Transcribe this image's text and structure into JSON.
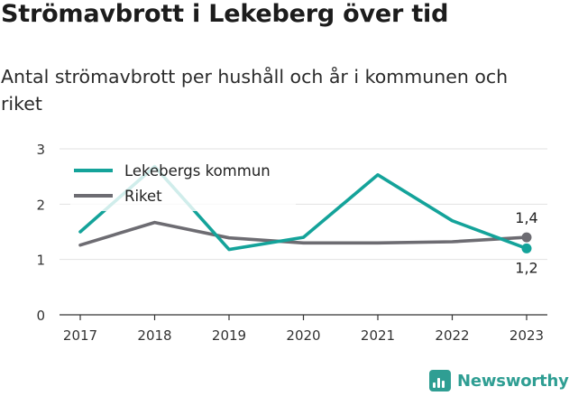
{
  "title": "Strömavbrott i Lekeberg över tid",
  "subtitle": "Antal strömavbrott per hushåll och år i kommunen och riket",
  "brand": {
    "name": "Newsworthy",
    "icon": "bar-chart-logo-icon",
    "color": "#2f9e93"
  },
  "chart_data": {
    "type": "line",
    "title": "",
    "xlabel": "",
    "ylabel": "",
    "x": [
      "2017",
      "2018",
      "2019",
      "2020",
      "2021",
      "2022",
      "2023"
    ],
    "ylim": [
      0,
      3
    ],
    "yticks": [
      "0",
      "1",
      "2",
      "3"
    ],
    "grid": true,
    "legend_position": "top-left",
    "series": [
      {
        "name": "Lekebergs kommun",
        "color": "#14a39a",
        "values": [
          1.5,
          2.68,
          1.18,
          1.4,
          2.53,
          1.7,
          1.2
        ],
        "end_label": "1,2"
      },
      {
        "name": "Riket",
        "color": "#6d6c72",
        "values": [
          1.26,
          1.67,
          1.39,
          1.3,
          1.3,
          1.32,
          1.4
        ],
        "end_label": "1,4"
      }
    ]
  }
}
